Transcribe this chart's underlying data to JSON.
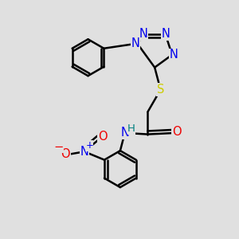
{
  "background_color": "#e0e0e0",
  "bond_color": "#000000",
  "bond_width": 1.8,
  "atom_colors": {
    "N": "#0000ee",
    "O": "#ee0000",
    "S": "#cccc00",
    "H": "#008080",
    "C": "#000000"
  },
  "font_size": 10.5,
  "xlim": [
    0,
    10
  ],
  "ylim": [
    0,
    10
  ]
}
